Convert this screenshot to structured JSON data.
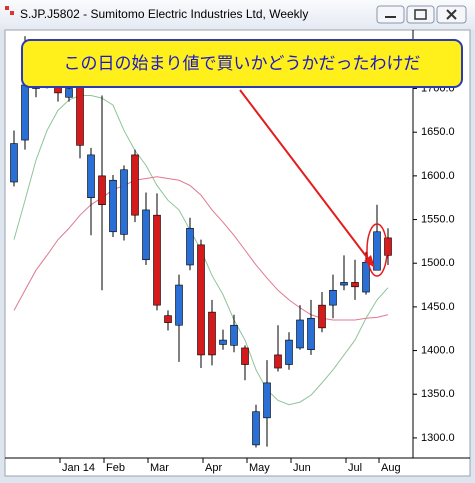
{
  "chart_data": {
    "type": "candlestick",
    "title": "S.JP.J5802 - Sumitomo Electric Industries Ltd, Weekly",
    "annotation": "この日の始まり値で買いかどうかだったわけだ",
    "categories": [
      null,
      null,
      null,
      null,
      null,
      "Jan 14",
      null,
      null,
      null,
      "Feb",
      null,
      null,
      null,
      "Mar",
      null,
      null,
      null,
      null,
      "Apr",
      null,
      null,
      null,
      "May",
      null,
      null,
      null,
      "Jun",
      null,
      null,
      null,
      null,
      "Jul",
      null,
      null,
      "Aug"
    ],
    "open": [
      1593,
      1641,
      1700,
      1715,
      1710,
      1690,
      1704,
      1575,
      1600,
      1536,
      1533,
      1624,
      1504,
      1555,
      1440,
      1429,
      1498,
      1521,
      1444,
      1407,
      1406,
      1403,
      1292,
      1323,
      1395,
      1384,
      1403,
      1401,
      1452,
      1452,
      1475,
      1478,
      1467,
      1492,
      1529
    ],
    "high": [
      1652,
      1760,
      1740,
      1730,
      1725,
      1720,
      1740,
      1632,
      1692,
      1601,
      1612,
      1630,
      1581,
      1580,
      1446,
      1487,
      1552,
      1527,
      1458,
      1424,
      1441,
      1406,
      1338,
      1389,
      1429,
      1421,
      1452,
      1458,
      1467,
      1487,
      1509,
      1504,
      1513,
      1567,
      1540
    ],
    "low": [
      1588,
      1630,
      1690,
      1700,
      1685,
      1685,
      1620,
      1532,
      1469,
      1530,
      1526,
      1547,
      1498,
      1446,
      1423,
      1387,
      1492,
      1380,
      1383,
      1401,
      1398,
      1366,
      1289,
      1290,
      1376,
      1378,
      1401,
      1395,
      1421,
      1437,
      1469,
      1458,
      1464,
      1492,
      1498
    ],
    "close": [
      1637,
      1704,
      1710,
      1705,
      1695,
      1700,
      1635,
      1624,
      1567,
      1595,
      1607,
      1555,
      1561,
      1452,
      1432,
      1475,
      1540,
      1395,
      1395,
      1412,
      1429,
      1384,
      1330,
      1363,
      1380,
      1412,
      1435,
      1437,
      1426,
      1469,
      1478,
      1473,
      1501,
      1536,
      1509
    ],
    "up_color": "#2a6fd6",
    "down_color": "#d41a1a",
    "lines": [
      {
        "color": "#8fc49a",
        "values": [
          1527,
          1572,
          1618,
          1652,
          1675,
          1687,
          1692,
          1692,
          1689,
          1681,
          1652,
          1629,
          1612,
          1589,
          1572,
          1561,
          1538,
          1515,
          1486,
          1464,
          1435,
          1412,
          1378,
          1355,
          1343,
          1338,
          1341,
          1349,
          1363,
          1378,
          1395,
          1412,
          1437,
          1458,
          1472
        ]
      },
      {
        "color": "#e07890",
        "values": [
          1446,
          1469,
          1492,
          1509,
          1527,
          1540,
          1555,
          1567,
          1575,
          1584,
          1589,
          1595,
          1597,
          1599,
          1597,
          1595,
          1589,
          1578,
          1561,
          1547,
          1532,
          1515,
          1498,
          1483,
          1469,
          1458,
          1449,
          1441,
          1437,
          1435,
          1435,
          1435,
          1437,
          1438,
          1441
        ]
      }
    ],
    "ylim": [
      1277,
      1767
    ],
    "yticks": [
      {
        "value": 1300,
        "label": "1300.0"
      },
      {
        "value": 1350,
        "label": "1350.0"
      },
      {
        "value": 1400,
        "label": "1400.0"
      },
      {
        "value": 1450,
        "label": "1450.0"
      },
      {
        "value": 1500,
        "label": "1500.0"
      },
      {
        "value": 1550,
        "label": "1550.0"
      },
      {
        "value": 1600,
        "label": "1600.0"
      },
      {
        "value": 1650,
        "label": "1650.0"
      },
      {
        "value": 1700,
        "label": "1700.0"
      }
    ]
  }
}
